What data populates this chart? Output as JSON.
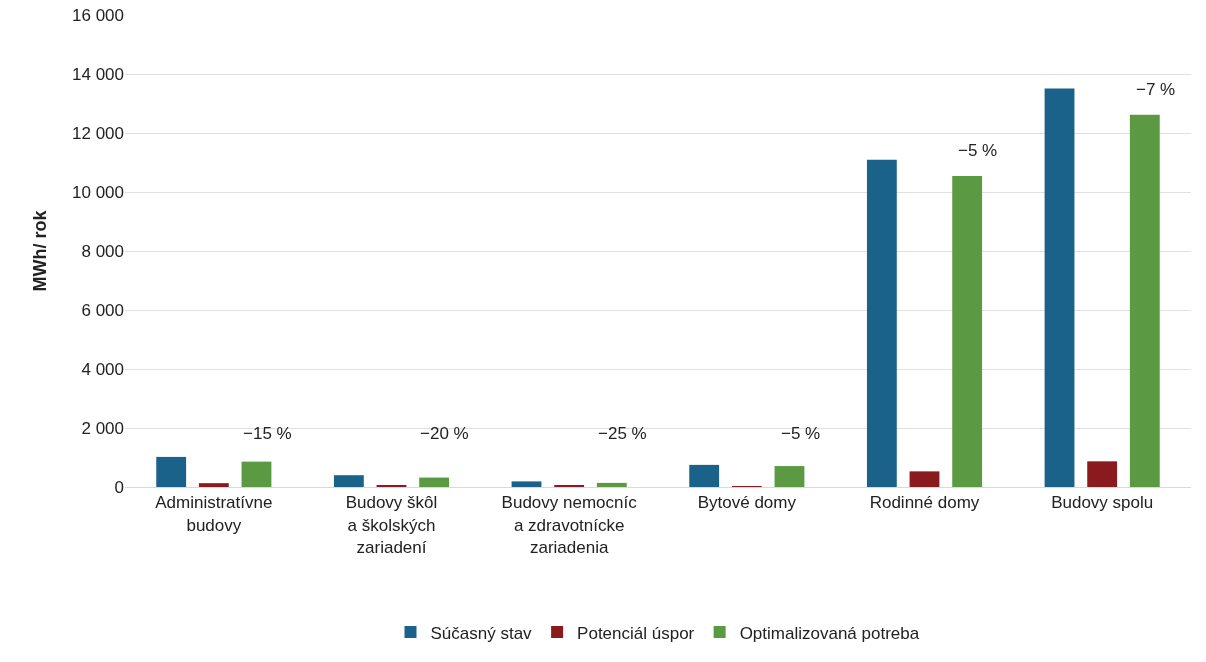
{
  "chart_data": {
    "type": "bar",
    "ylabel": "MWh/ rok",
    "categories": [
      "Administratívne budovy",
      "Budovy škôl a školských zariadení",
      "Budovy nemocníc a zdravotnícke zariadenia",
      "Bytové domy",
      "Rodinné domy",
      "Budovy spolu"
    ],
    "series": [
      {
        "name": "Súčasný stav",
        "color": "#1b628b",
        "values": [
          1020,
          400,
          190,
          750,
          11090,
          13510
        ]
      },
      {
        "name": "Potenciál úspor",
        "color": "#8b1a1e",
        "values": [
          130,
          60,
          40,
          20,
          530,
          870
        ]
      },
      {
        "name": "Optimalizovaná potreba",
        "color": "#5b9a43",
        "values": [
          860,
          320,
          140,
          710,
          10540,
          12620
        ]
      }
    ],
    "ylim": [
      0,
      16000
    ],
    "yticks": [
      {
        "value": 0,
        "label": "0"
      },
      {
        "value": 2000,
        "label": "2 000"
      },
      {
        "value": 4000,
        "label": "4 000"
      },
      {
        "value": 6000,
        "label": "6 000"
      },
      {
        "value": 8000,
        "label": "8 000"
      },
      {
        "value": 10000,
        "label": "10 000"
      },
      {
        "value": 12000,
        "label": "12 000"
      },
      {
        "value": 14000,
        "label": "14 000"
      },
      {
        "value": 16000,
        "label": "16 000"
      }
    ],
    "grid": "y",
    "legend": "bottom",
    "annotations": [
      "−15 %",
      "−20 %",
      "−25 %",
      "−5 %",
      "−5 %",
      "−7 %"
    ]
  }
}
